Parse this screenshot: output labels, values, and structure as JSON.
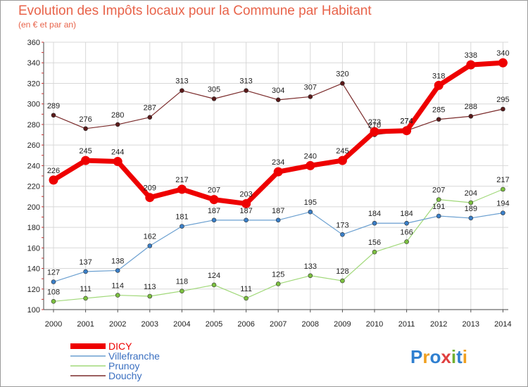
{
  "header": {
    "title": "Evolution des Impôts locaux pour la Commune par Habitant",
    "subtitle": "(en € et par an)"
  },
  "logo": {
    "letters": [
      "P",
      "r",
      "o",
      "x",
      "i",
      "t",
      "i"
    ],
    "colors": [
      "#2f7fd0",
      "#f0a020",
      "#2f7fd0",
      "#e04040",
      "#70b030",
      "#2f7fd0",
      "#f0a020"
    ]
  },
  "chart_data": {
    "type": "line",
    "x": [
      2000,
      2001,
      2002,
      2003,
      2004,
      2005,
      2006,
      2007,
      2008,
      2009,
      2010,
      2011,
      2012,
      2013,
      2014
    ],
    "categories": [
      "2000",
      "2001",
      "2002",
      "2003",
      "2004",
      "2005",
      "2006",
      "2007",
      "2008",
      "2009",
      "2010",
      "2011",
      "2012",
      "2013",
      "2014"
    ],
    "ylim": [
      100,
      360
    ],
    "yticks": [
      100,
      120,
      140,
      160,
      180,
      200,
      220,
      240,
      260,
      280,
      300,
      320,
      340,
      360
    ],
    "grid": true,
    "legend_position": "bottom-left",
    "series": [
      {
        "name": "Douchy",
        "color": "#7a2a2a",
        "marker": "#5a1a1a",
        "width": 1.2,
        "r": 3,
        "values": [
          289,
          276,
          280,
          287,
          313,
          305,
          313,
          304,
          307,
          320,
          270,
          274,
          285,
          288,
          295
        ]
      },
      {
        "name": "Prunoy",
        "color": "#a0d878",
        "marker": "#7cc040",
        "width": 1.2,
        "r": 3,
        "values": [
          108,
          111,
          114,
          113,
          118,
          124,
          111,
          125,
          133,
          128,
          156,
          166,
          207,
          204,
          217
        ]
      },
      {
        "name": "Villefranche",
        "color": "#6a9fd0",
        "marker": "#3a7fc8",
        "width": 1.2,
        "r": 3,
        "values": [
          127,
          137,
          138,
          162,
          181,
          187,
          187,
          187,
          195,
          173,
          184,
          184,
          191,
          189,
          194
        ]
      },
      {
        "name": "DICY",
        "color": "#ee0000",
        "marker": "#ee0000",
        "width": 7,
        "r": 6,
        "values": [
          226,
          245,
          244,
          209,
          217,
          207,
          203,
          234,
          240,
          245,
          273,
          274,
          318,
          338,
          340
        ]
      }
    ],
    "legend": [
      {
        "name": "DICY",
        "color": "#ee0000",
        "text_color": "#ee0000",
        "thick": true
      },
      {
        "name": "Villefranche",
        "color": "#6a9fd0",
        "text_color": "#3a6fc0",
        "thick": false
      },
      {
        "name": "Prunoy",
        "color": "#a0d878",
        "text_color": "#3a6fc0",
        "thick": false
      },
      {
        "name": "Douchy",
        "color": "#7a2a2a",
        "text_color": "#3a6fc0",
        "thick": false
      }
    ]
  }
}
